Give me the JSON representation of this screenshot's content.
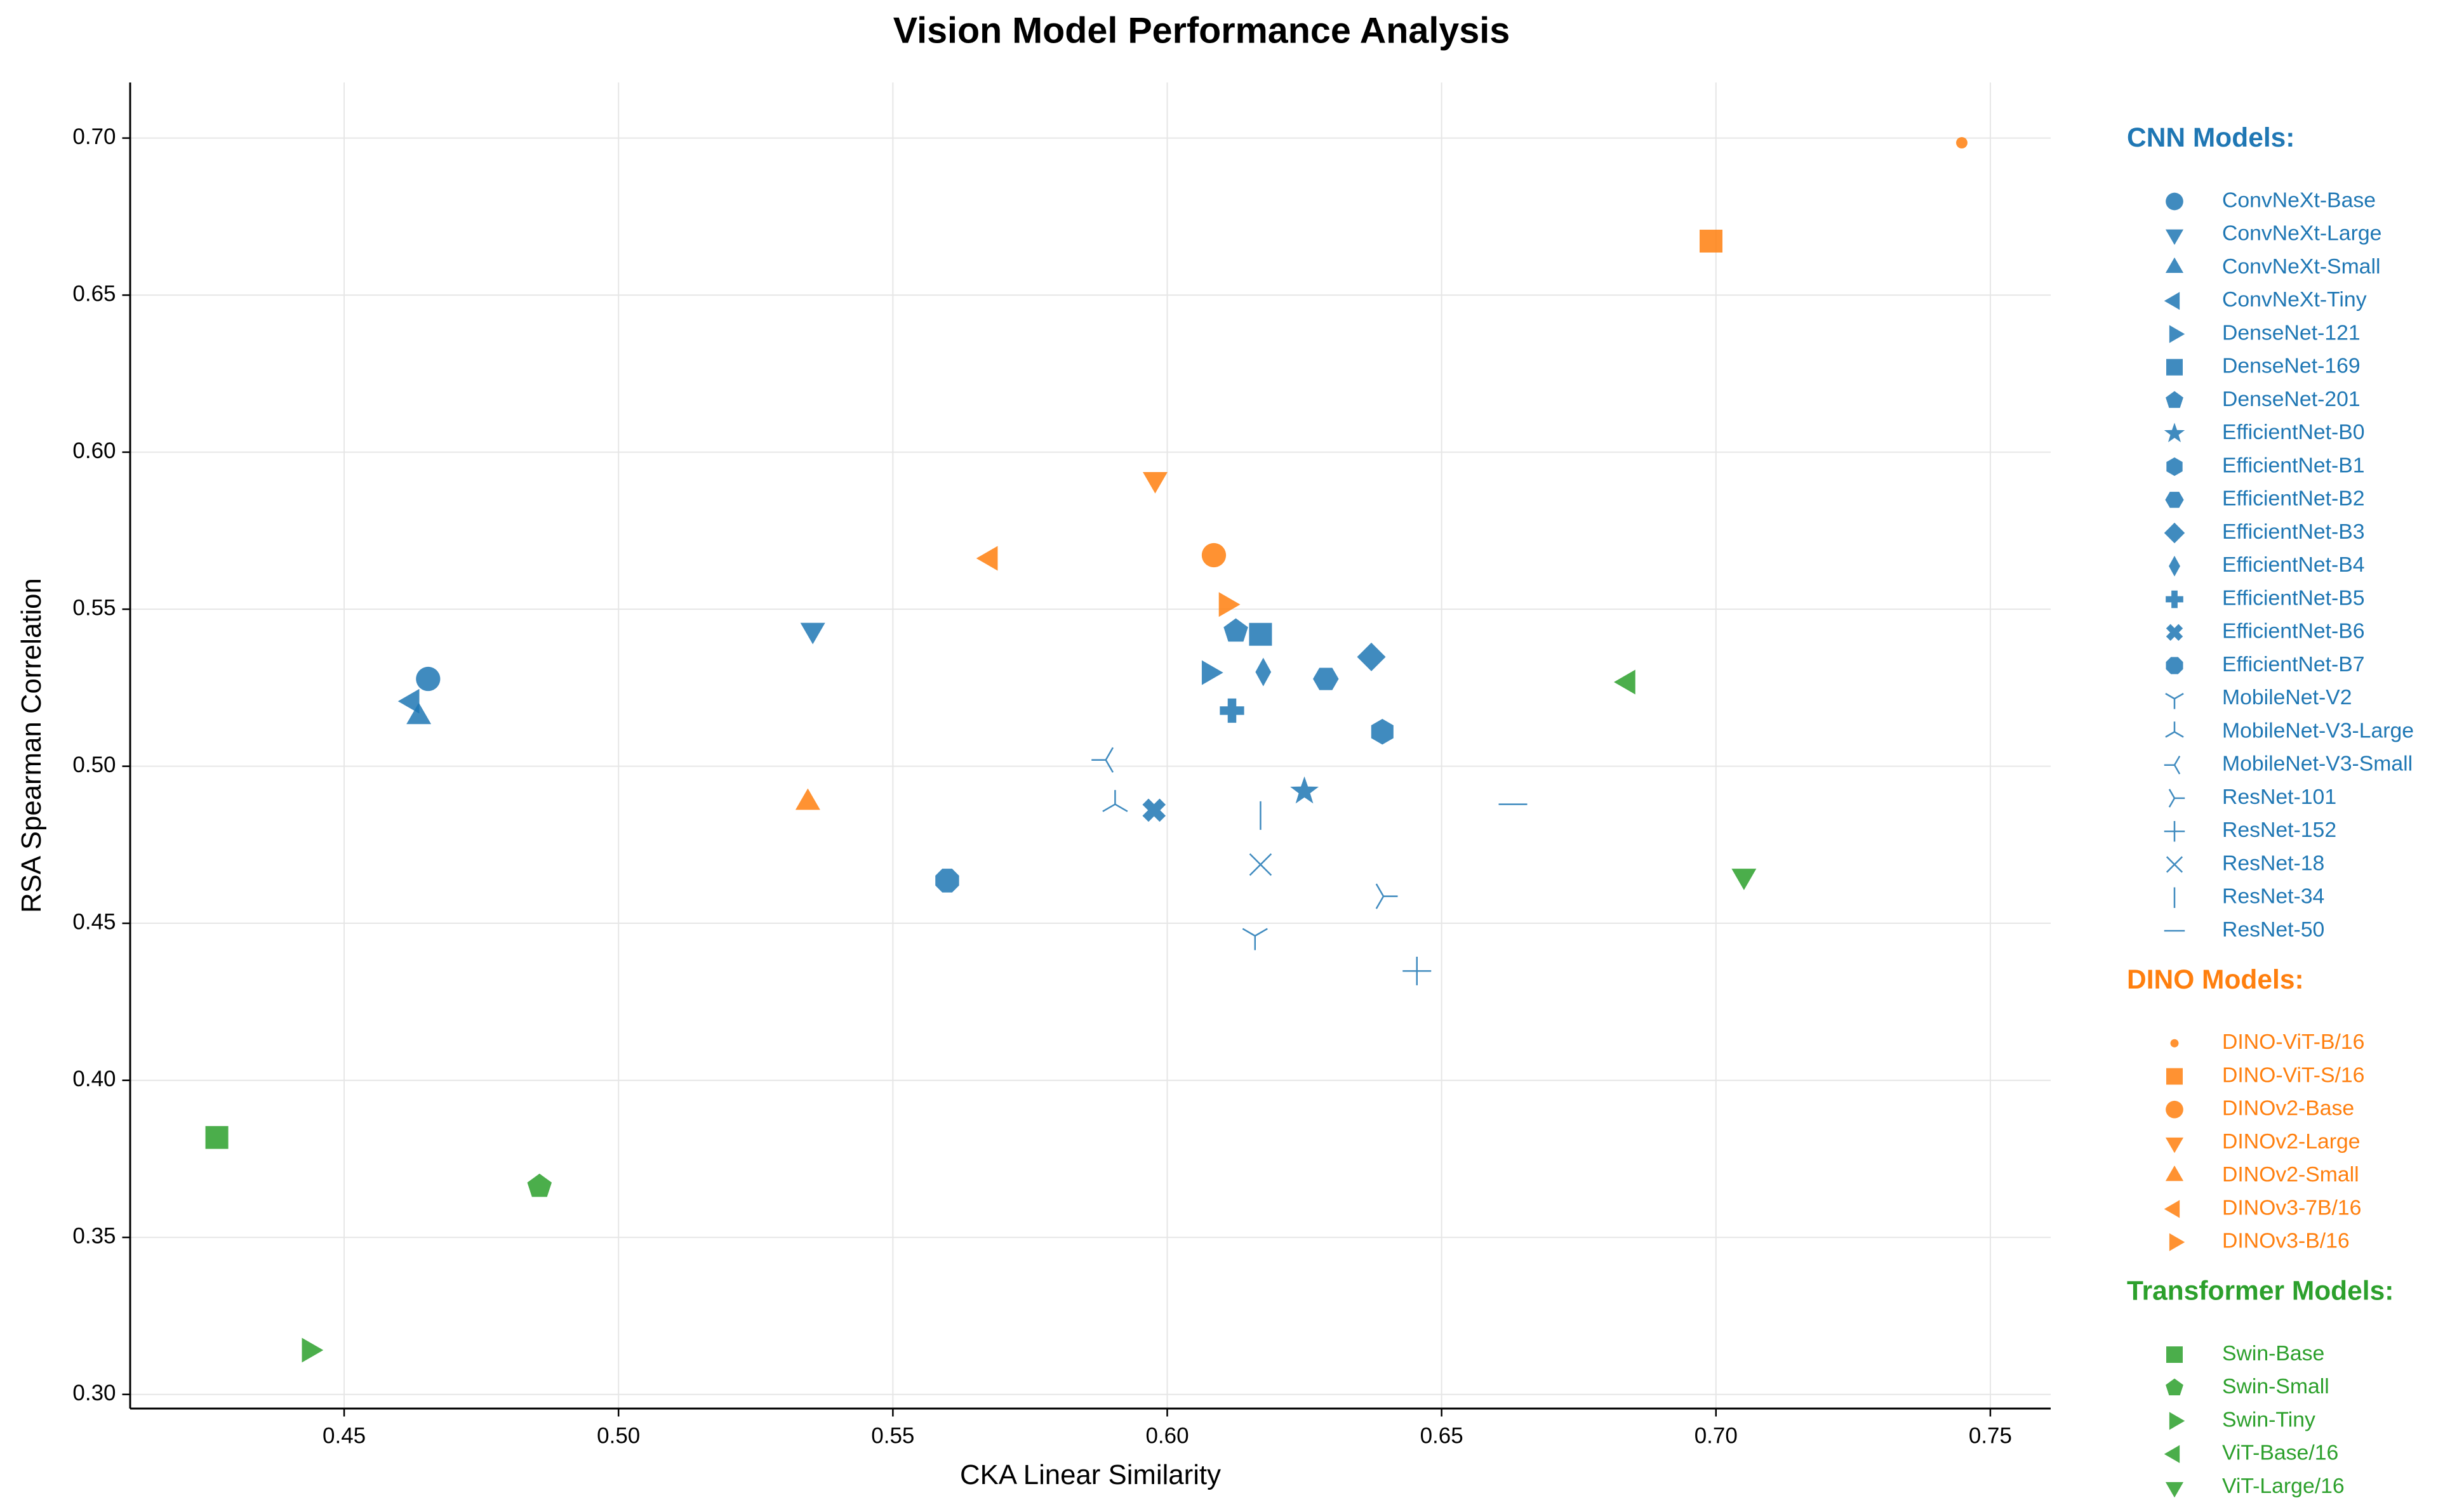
{
  "chart_data": {
    "type": "scatter",
    "title": "Vision Model Performance Analysis",
    "xlabel": "CKA Linear Similarity",
    "ylabel": "RSA Spearman Correlation",
    "xlim": [
      0.411,
      0.761
    ],
    "ylim": [
      0.2955,
      0.7177
    ],
    "xticks": [
      0.45,
      {
        "value": 0.5,
        "label": "0.50"
      },
      0.55,
      {
        "value": 0.6,
        "label": "0.60"
      },
      0.65,
      {
        "value": 0.7,
        "label": "0.70"
      },
      0.75
    ],
    "yticks": [
      {
        "value": 0.3,
        "label": "0.30"
      },
      0.35,
      {
        "value": 0.4,
        "label": "0.40"
      },
      0.45,
      {
        "value": 0.5,
        "label": "0.50"
      },
      0.55,
      {
        "value": 0.6,
        "label": "0.60"
      },
      0.65,
      {
        "value": 0.7,
        "label": "0.70"
      }
    ],
    "grid": true,
    "groups": [
      {
        "title": "CNN Models:",
        "color": "#1f77b4",
        "series": [
          {
            "name": "ConvNeXt-Base",
            "marker": "o",
            "x": [
              0.4653
            ],
            "values": [
              0.5278
            ]
          },
          {
            "name": "ConvNeXt-Large",
            "marker": "v",
            "x": [
              0.5354
            ],
            "values": [
              0.5434
            ]
          },
          {
            "name": "ConvNeXt-Small",
            "marker": "^",
            "x": [
              0.4636
            ],
            "values": [
              0.5157
            ]
          },
          {
            "name": "ConvNeXt-Tiny",
            "marker": "<",
            "x": [
              0.4624
            ],
            "values": [
              0.5207
            ]
          },
          {
            "name": "DenseNet-121",
            "marker": ">",
            "x": [
              0.6076
            ],
            "values": [
              0.5298
            ]
          },
          {
            "name": "DenseNet-169",
            "marker": "s",
            "x": [
              0.617
            ],
            "values": [
              0.542
            ]
          },
          {
            "name": "DenseNet-201",
            "marker": "p",
            "x": [
              0.6125
            ],
            "values": [
              0.543
            ]
          },
          {
            "name": "EfficientNet-B0",
            "marker": "*",
            "x": [
              0.625
            ],
            "values": [
              0.492
            ]
          },
          {
            "name": "EfficientNet-B1",
            "marker": "h",
            "x": [
              0.6392
            ],
            "values": [
              0.511
            ]
          },
          {
            "name": "EfficientNet-B2",
            "marker": "H",
            "x": [
              0.6289
            ],
            "values": [
              0.5278
            ]
          },
          {
            "name": "EfficientNet-B3",
            "marker": "D",
            "x": [
              0.6372
            ],
            "values": [
              0.5348
            ]
          },
          {
            "name": "EfficientNet-B4",
            "marker": "d",
            "x": [
              0.6175
            ],
            "values": [
              0.53
            ]
          },
          {
            "name": "EfficientNet-B5",
            "marker": "P",
            "x": [
              0.6118
            ],
            "values": [
              0.5177
            ]
          },
          {
            "name": "EfficientNet-B6",
            "marker": "X",
            "x": [
              0.5976
            ],
            "values": [
              0.486
            ]
          },
          {
            "name": "EfficientNet-B7",
            "marker": "8",
            "x": [
              0.5599
            ],
            "values": [
              0.4636
            ]
          },
          {
            "name": "MobileNet-V2",
            "marker": "1",
            "x": [
              0.616
            ],
            "values": [
              0.446
            ]
          },
          {
            "name": "MobileNet-V3-Large",
            "marker": "2",
            "x": [
              0.5905
            ],
            "values": [
              0.4879
            ]
          },
          {
            "name": "MobileNet-V3-Small",
            "marker": "3",
            "x": [
              0.5888
            ],
            "values": [
              0.502
            ]
          },
          {
            "name": "ResNet-101",
            "marker": "4",
            "x": [
              0.6394
            ],
            "values": [
              0.4586
            ]
          },
          {
            "name": "ResNet-152",
            "marker": "+",
            "x": [
              0.6455
            ],
            "values": [
              0.4348
            ]
          },
          {
            "name": "ResNet-18",
            "marker": "x",
            "x": [
              0.617
            ],
            "values": [
              0.4687
            ]
          },
          {
            "name": "ResNet-34",
            "marker": "|",
            "x": [
              0.617
            ],
            "values": [
              0.4843
            ]
          },
          {
            "name": "ResNet-50",
            "marker": "_",
            "x": [
              0.663
            ],
            "values": [
              0.4879
            ]
          }
        ]
      },
      {
        "title": "DINO Models:",
        "color": "#ff7f0e",
        "series": [
          {
            "name": "DINO-ViT-B/16",
            "marker": ".",
            "x": [
              0.7448
            ],
            "values": [
              0.6985
            ]
          },
          {
            "name": "DINO-ViT-S/16",
            "marker": "s",
            "x": [
              0.6991
            ],
            "values": [
              0.6672
            ]
          },
          {
            "name": "DINOv2-Base",
            "marker": "o",
            "x": [
              0.6085
            ],
            "values": [
              0.5672
            ]
          },
          {
            "name": "DINOv2-Large",
            "marker": "v",
            "x": [
              0.5978
            ],
            "values": [
              0.5914
            ]
          },
          {
            "name": "DINOv2-Small",
            "marker": "^",
            "x": [
              0.5345
            ],
            "values": [
              0.4884
            ]
          },
          {
            "name": "DINOv3-7B/16",
            "marker": "<",
            "x": [
              0.5678
            ],
            "values": [
              0.5662
            ]
          },
          {
            "name": "DINOv3-B/16",
            "marker": ">",
            "x": [
              0.6107
            ],
            "values": [
              0.5515
            ]
          }
        ]
      },
      {
        "title": "Transformer Models:",
        "color": "#2ca02c",
        "series": [
          {
            "name": "Swin-Base",
            "marker": "s",
            "x": [
              0.4268
            ],
            "values": [
              0.3818
            ]
          },
          {
            "name": "Swin-Small",
            "marker": "p",
            "x": [
              0.4856
            ],
            "values": [
              0.3662
            ]
          },
          {
            "name": "Swin-Tiny",
            "marker": ">",
            "x": [
              0.4436
            ],
            "values": [
              0.3141
            ]
          },
          {
            "name": "ViT-Base/16",
            "marker": "<",
            "x": [
              0.684
            ],
            "values": [
              0.5268
            ]
          },
          {
            "name": "ViT-Large/16",
            "marker": "v",
            "x": [
              0.7051
            ],
            "values": [
              0.4651
            ]
          }
        ]
      }
    ]
  }
}
